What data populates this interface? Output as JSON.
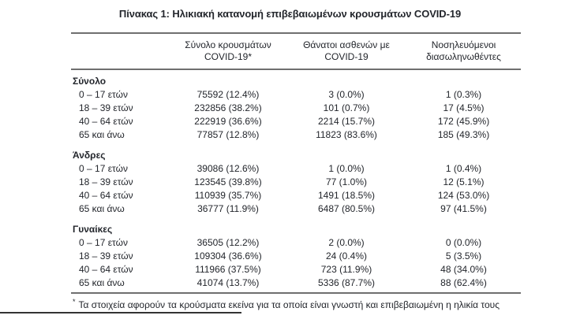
{
  "title": "Πίνακας 1: Ηλικιακή κατανομή επιβεβαιωμένων κρουσμάτων COVID-19",
  "colors": {
    "text": "#23262c",
    "table_border": "#6f6f6f",
    "separator_line": "#333333",
    "background": "#ffffff"
  },
  "table": {
    "columns": [
      "",
      "Σύνολο κρουσμάτων COVID-19*",
      "Θάνατοι ασθενών με COVID-19",
      "Νοσηλευόμενοι διασωληνωθέντες"
    ],
    "sections": [
      {
        "label": "Σύνολο",
        "rows": [
          {
            "age": "0 – 17 ετών",
            "cases": "75592 (12.4%)",
            "deaths": "3 (0.0%)",
            "intubated": "1 (0.3%)"
          },
          {
            "age": "18 – 39 ετών",
            "cases": "232856 (38.2%)",
            "deaths": "101 (0.7%)",
            "intubated": "17 (4.5%)"
          },
          {
            "age": "40 – 64 ετών",
            "cases": "222919 (36.6%)",
            "deaths": "2214 (15.7%)",
            "intubated": "172 (45.9%)"
          },
          {
            "age": "65 και άνω",
            "cases": "77857 (12.8%)",
            "deaths": "11823 (83.6%)",
            "intubated": "185 (49.3%)"
          }
        ]
      },
      {
        "label": "Άνδρες",
        "rows": [
          {
            "age": "0 – 17 ετών",
            "cases": "39086 (12.6%)",
            "deaths": "1 (0.0%)",
            "intubated": "1 (0.4%)"
          },
          {
            "age": "18 – 39 ετών",
            "cases": "123545 (39.8%)",
            "deaths": "77 (1.0%)",
            "intubated": "12 (5.1%)"
          },
          {
            "age": "40 – 64 ετών",
            "cases": "110939 (35.7%)",
            "deaths": "1491 (18.5%)",
            "intubated": "124 (53.0%)"
          },
          {
            "age": "65 και άνω",
            "cases": "36777 (11.9%)",
            "deaths": "6487 (80.5%)",
            "intubated": "97 (41.5%)"
          }
        ]
      },
      {
        "label": "Γυναίκες",
        "rows": [
          {
            "age": "0 – 17 ετών",
            "cases": "36505 (12.2%)",
            "deaths": "2 (0.0%)",
            "intubated": "0 (0.0%)"
          },
          {
            "age": "18 – 39 ετών",
            "cases": "109304 (36.6%)",
            "deaths": "24 (0.4%)",
            "intubated": "5 (3.5%)"
          },
          {
            "age": "40 – 64 ετών",
            "cases": "111966 (37.5%)",
            "deaths": "723 (11.9%)",
            "intubated": "48 (34.0%)"
          },
          {
            "age": "65 και άνω",
            "cases": "41074 (13.7%)",
            "deaths": "5336 (87.7%)",
            "intubated": "88 (62.4%)"
          }
        ]
      }
    ]
  },
  "footnote": {
    "marker": "*",
    "text": "Τα στοιχεία αφορούν τα κρούσματα εκείνα για τα οποία είναι γνωστή και επιβεβαιωμένη η ηλικία τους"
  }
}
